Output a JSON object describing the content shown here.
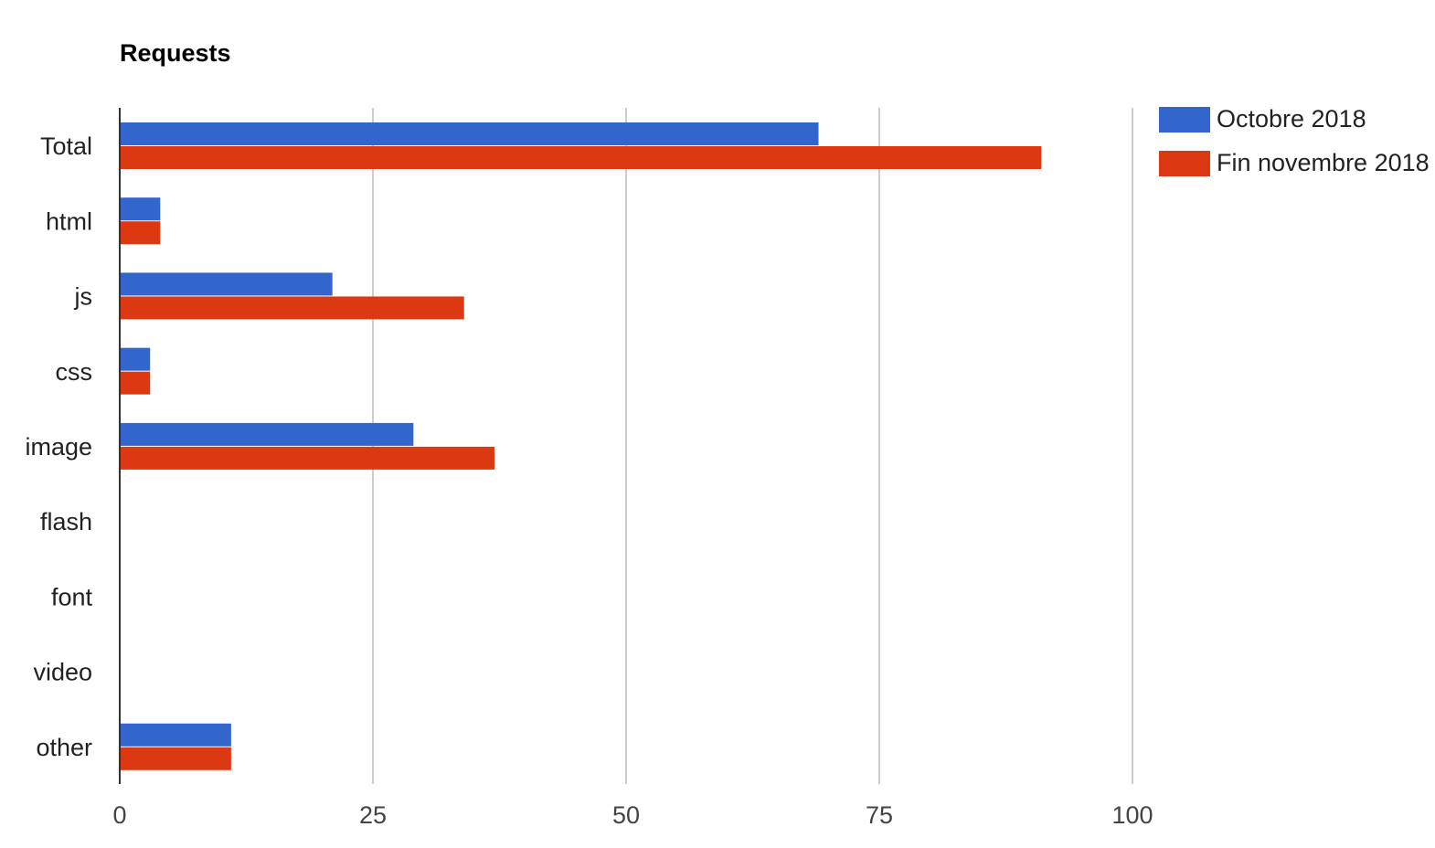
{
  "chart_data": {
    "type": "bar",
    "orientation": "horizontal",
    "title": "Requests",
    "categories": [
      "Total",
      "html",
      "js",
      "css",
      "image",
      "flash",
      "font",
      "video",
      "other"
    ],
    "series": [
      {
        "name": "Octobre 2018",
        "color": "#3366cc",
        "values": [
          69,
          4,
          21,
          3,
          29,
          0,
          0,
          0,
          11
        ]
      },
      {
        "name": "Fin novembre 2018",
        "color": "#dc3912",
        "values": [
          91,
          4,
          34,
          3,
          37,
          0,
          0,
          0,
          11
        ]
      }
    ],
    "xlim": [
      0,
      125
    ],
    "xticks": [
      0,
      25,
      50,
      75,
      100
    ],
    "xtick_labels": [
      "0",
      "25",
      "50",
      "75",
      "100"
    ],
    "grid": true,
    "legend_position": "right"
  }
}
